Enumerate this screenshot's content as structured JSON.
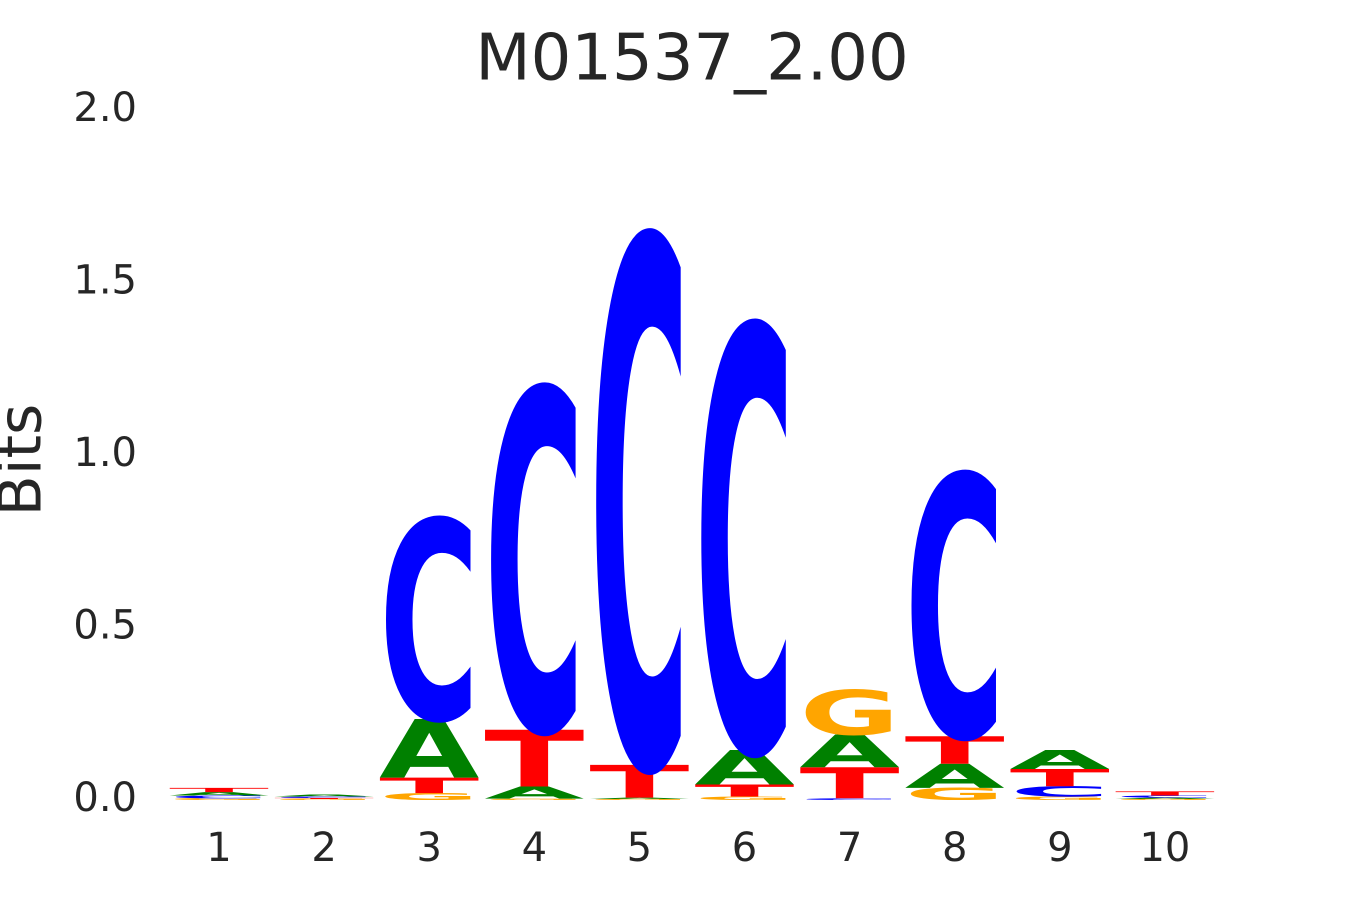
{
  "chart_data": {
    "type": "logo",
    "title": "M01537_2.00",
    "ylabel": "Bits",
    "categories": [
      "1",
      "2",
      "3",
      "4",
      "5",
      "6",
      "7",
      "8",
      "9",
      "10"
    ],
    "series": [
      {
        "name": "A",
        "color": "#008000",
        "values": [
          0.01,
          0.006,
          0.17,
          0.035,
          0.004,
          0.1,
          0.095,
          0.07,
          0.055,
          0.004
        ]
      },
      {
        "name": "C",
        "color": "#0000ff",
        "values": [
          0.008,
          0.004,
          0.58,
          0.99,
          1.53,
          1.23,
          0.005,
          0.76,
          0.03,
          0.006
        ]
      },
      {
        "name": "G",
        "color": "#ffa500",
        "values": [
          0.005,
          0.003,
          0.02,
          0.004,
          0.003,
          0.01,
          0.13,
          0.035,
          0.01,
          0.003
        ]
      },
      {
        "name": "T",
        "color": "#ff0000",
        "values": [
          0.012,
          0.003,
          0.045,
          0.165,
          0.095,
          0.035,
          0.09,
          0.08,
          0.05,
          0.012
        ]
      }
    ],
    "ylim": [
      0,
      2
    ],
    "yticks": [
      {
        "value": 0,
        "label": "0.0"
      },
      {
        "value": 0.5,
        "label": "0.5"
      },
      {
        "value": 1,
        "label": "1.0"
      },
      {
        "value": 1.5,
        "label": "1.5"
      },
      {
        "value": 2,
        "label": "2.0"
      }
    ]
  }
}
